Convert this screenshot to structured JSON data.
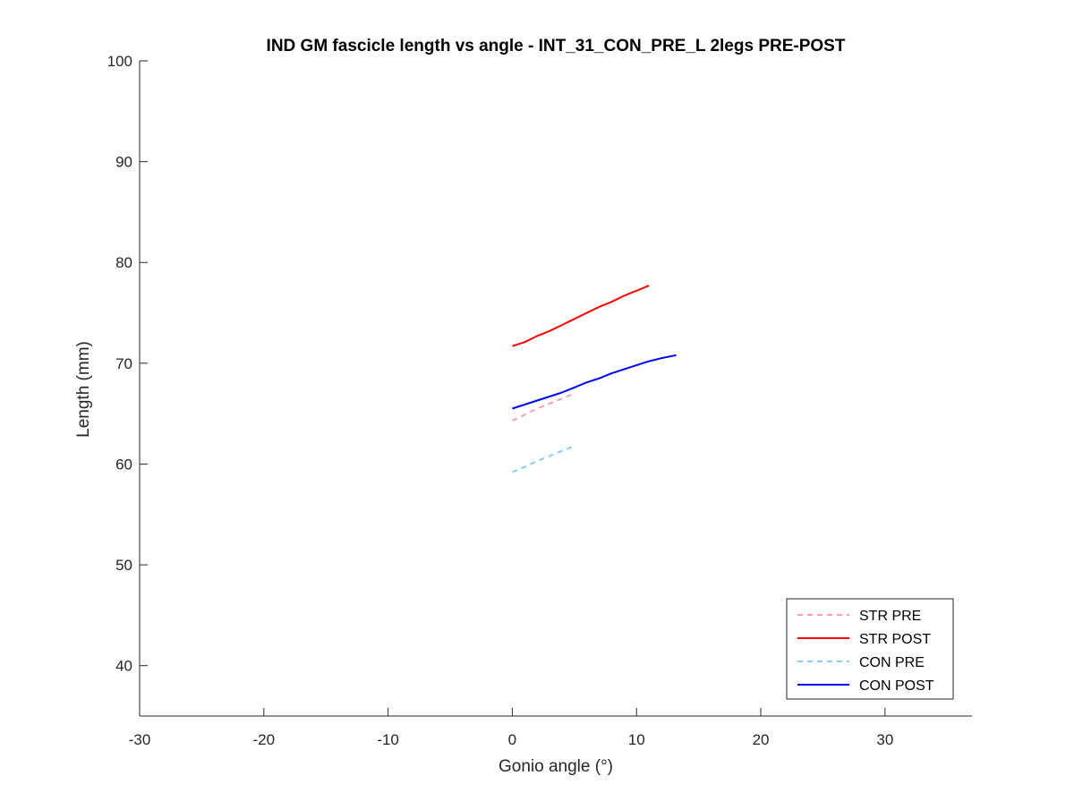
{
  "chart_data": {
    "type": "line",
    "title": "IND GM fascicle length vs angle - INT_31_CON_PRE_L 2legs PRE-POST",
    "xlabel": "Gonio angle (°)",
    "ylabel": "Length (mm)",
    "xlim": [
      -30,
      37
    ],
    "ylim": [
      35,
      100
    ],
    "xticks": [
      -30,
      -20,
      -10,
      0,
      10,
      20,
      30
    ],
    "yticks": [
      40,
      50,
      60,
      70,
      80,
      90,
      100
    ],
    "grid": false,
    "legend_position": "bottom-right",
    "series": [
      {
        "name": "STR PRE",
        "color": "#ff9eb5",
        "style": "dashed",
        "x": [
          0,
          1,
          2,
          3,
          4,
          5
        ],
        "y": [
          64.3,
          64.9,
          65.5,
          66.0,
          66.5,
          67.0
        ]
      },
      {
        "name": "STR POST",
        "color": "#ff0000",
        "style": "solid",
        "x": [
          0,
          1,
          2,
          3,
          4,
          5,
          6,
          7,
          8,
          9,
          10,
          11
        ],
        "y": [
          71.7,
          72.1,
          72.7,
          73.2,
          73.8,
          74.4,
          75.0,
          75.6,
          76.1,
          76.7,
          77.2,
          77.7
        ]
      },
      {
        "name": "CON PRE",
        "color": "#87cefa",
        "style": "dashed",
        "x": [
          0,
          1,
          2,
          3,
          4,
          5
        ],
        "y": [
          59.2,
          59.7,
          60.3,
          60.8,
          61.3,
          61.8
        ]
      },
      {
        "name": "CON POST",
        "color": "#0000ff",
        "style": "solid",
        "x": [
          0,
          1,
          2,
          3,
          4,
          5,
          6,
          7,
          8,
          9,
          10,
          11,
          12,
          13.2
        ],
        "y": [
          65.5,
          65.9,
          66.3,
          66.7,
          67.1,
          67.6,
          68.1,
          68.5,
          69.0,
          69.4,
          69.8,
          70.2,
          70.5,
          70.8
        ]
      }
    ]
  }
}
